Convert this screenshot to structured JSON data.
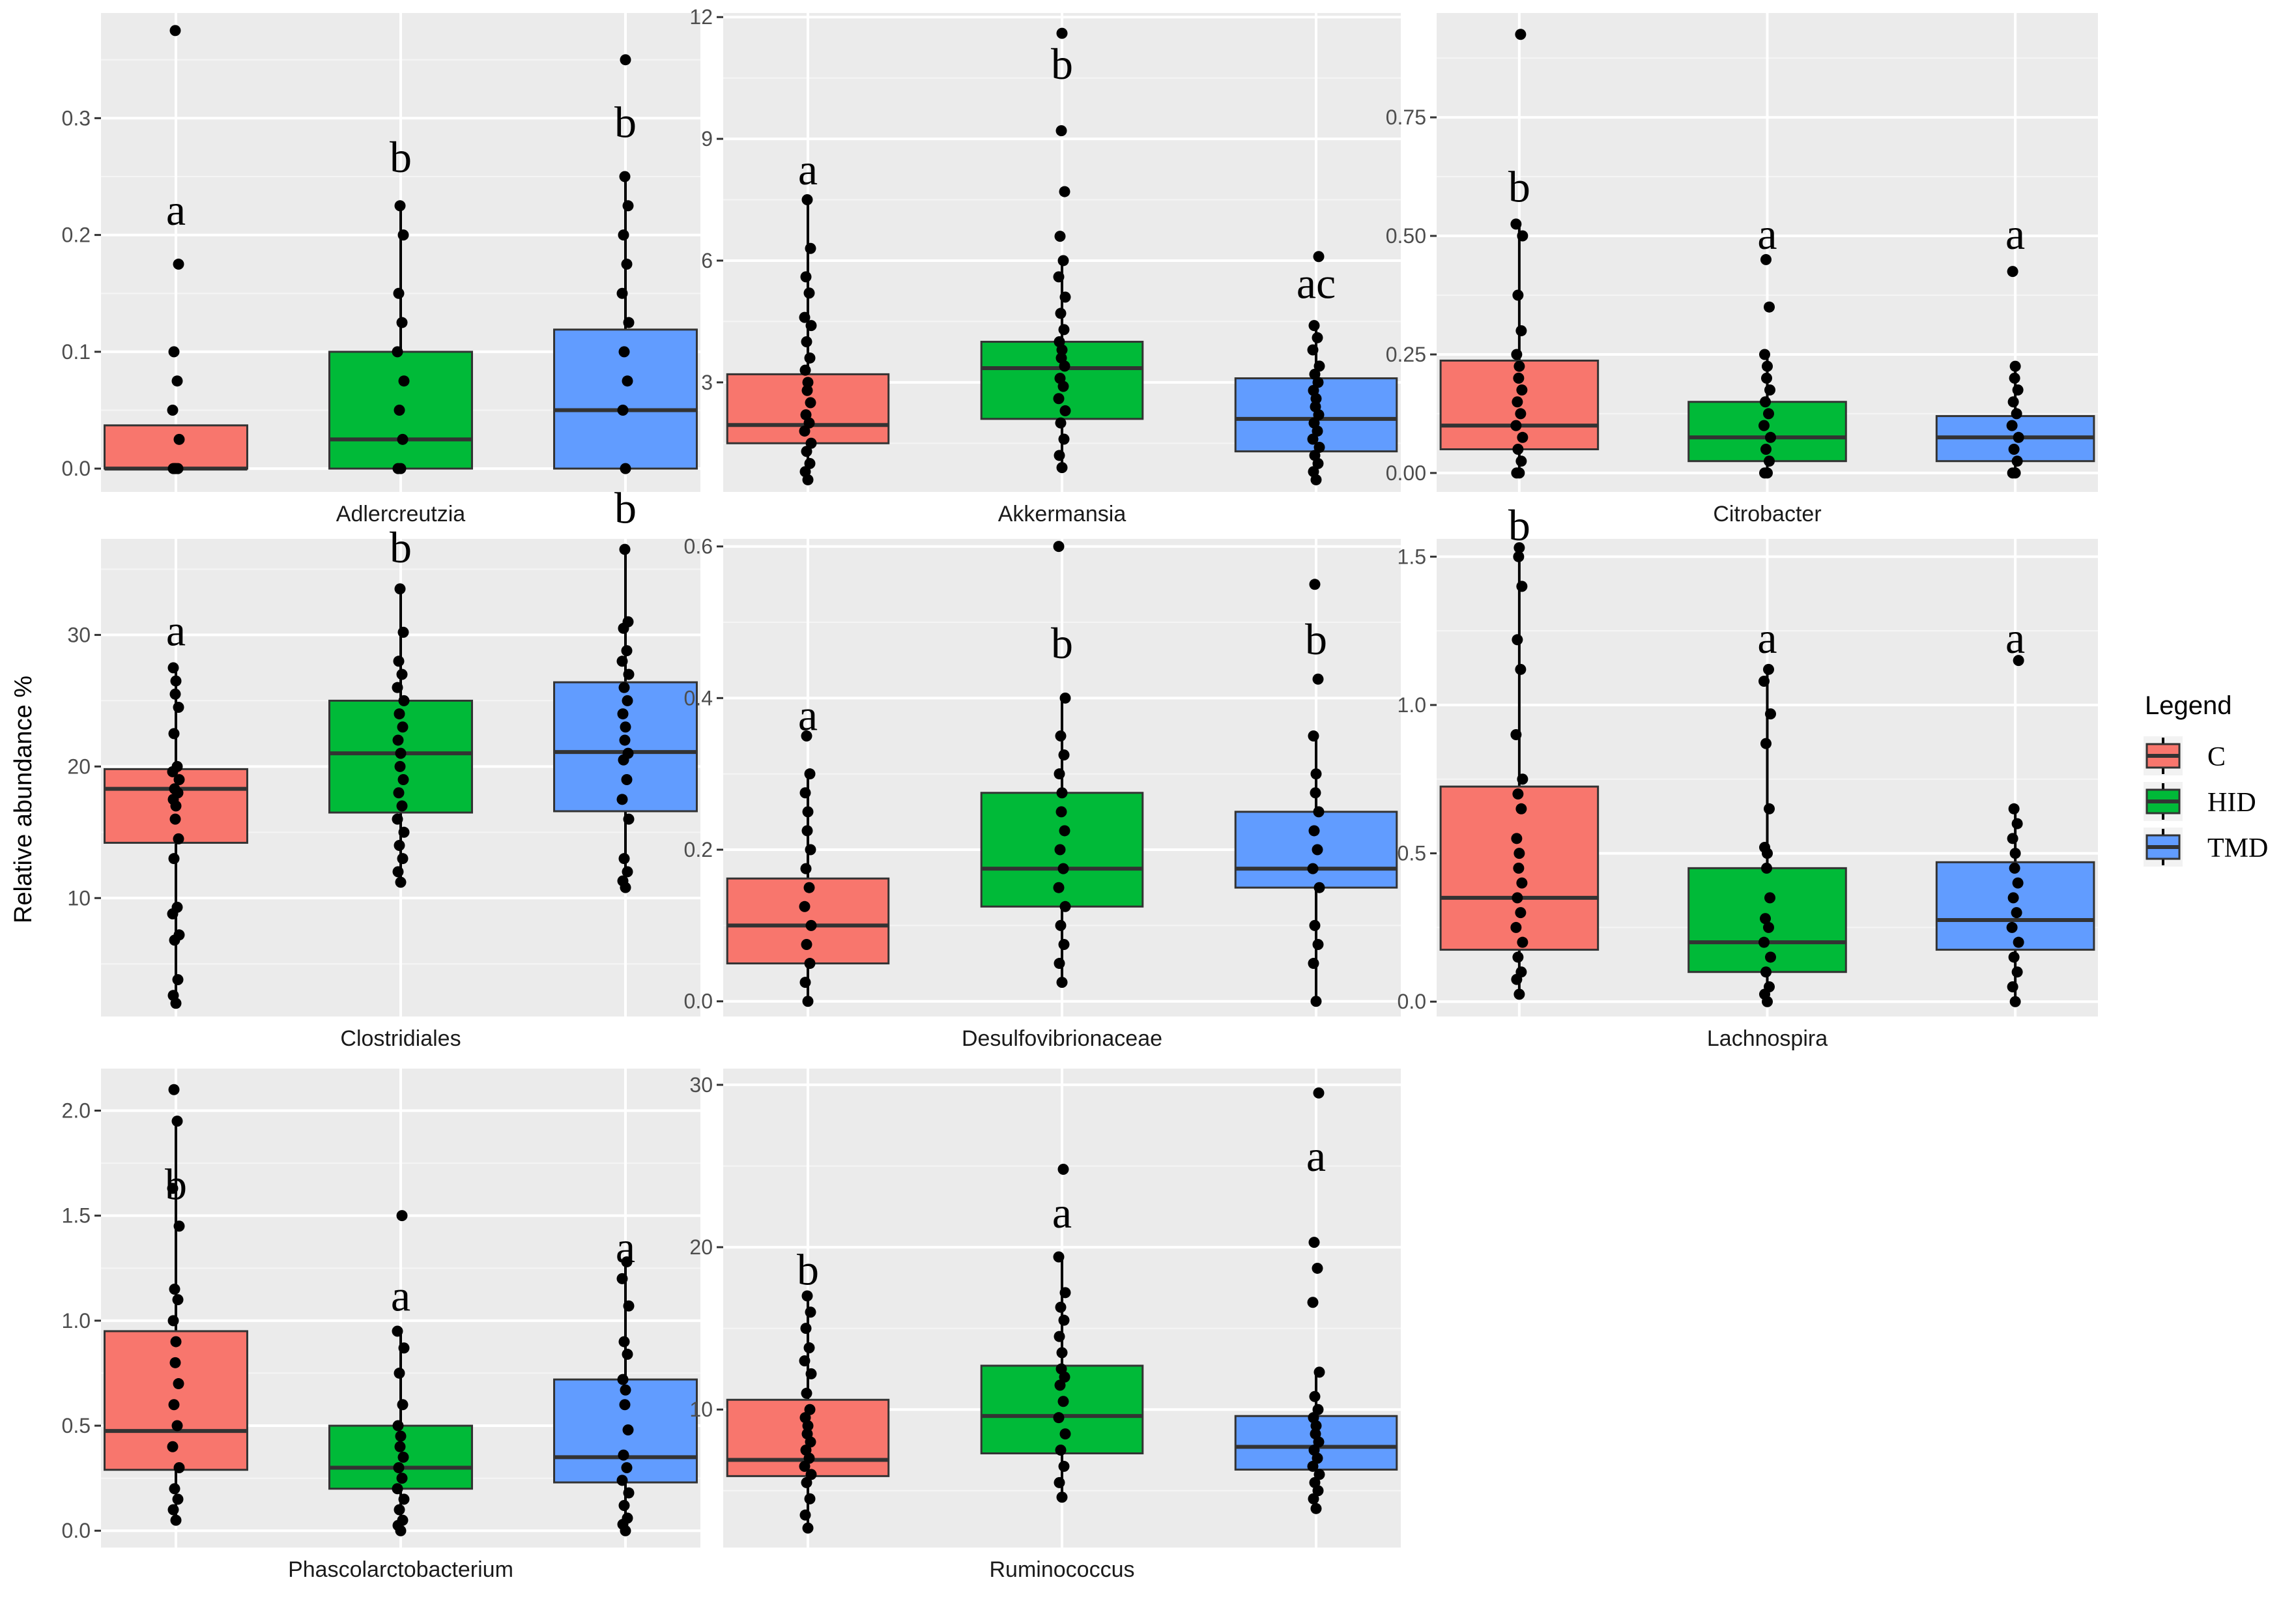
{
  "chart_data": {
    "type": "box",
    "y_axis_label": "Relative abundance %",
    "legend": {
      "title": "Legend",
      "position": "right",
      "items": [
        {
          "label": "C",
          "color": "#F8766D"
        },
        {
          "label": "HID",
          "color": "#00BA38"
        },
        {
          "label": "TMD",
          "color": "#619CFF"
        }
      ]
    },
    "groups": [
      "C",
      "HID",
      "TMD"
    ],
    "panels": [
      {
        "title": "Adlercreutzia",
        "ylim": [
          -0.02,
          0.39
        ],
        "ticks": [
          {
            "v": 0,
            "t": "0.0"
          },
          {
            "v": 0.1,
            "t": "0.1"
          },
          {
            "v": 0.2,
            "t": "0.2"
          },
          {
            "v": 0.3,
            "t": "0.3"
          }
        ],
        "boxes": [
          {
            "group": "C",
            "q1": 0,
            "median": 0,
            "q3": 0.037,
            "whisker_low": 0,
            "whisker_high": 0.037,
            "letter": "a",
            "letter_y": 0.22,
            "points": [
              0,
              0,
              0,
              0,
              0.025,
              0.05,
              0.075,
              0.1,
              0.175,
              0.375
            ]
          },
          {
            "group": "HID",
            "q1": 0,
            "median": 0.025,
            "q3": 0.1,
            "whisker_low": 0,
            "whisker_high": 0.225,
            "letter": "b",
            "letter_y": 0.265,
            "points": [
              0,
              0,
              0.025,
              0.05,
              0.075,
              0.1,
              0.125,
              0.15,
              0.2,
              0.225
            ]
          },
          {
            "group": "TMD",
            "q1": 0,
            "median": 0.05,
            "q3": 0.119,
            "whisker_low": 0,
            "whisker_high": 0.25,
            "letter": "b",
            "letter_y": 0.295,
            "points": [
              0,
              0.05,
              0.075,
              0.1,
              0.125,
              0.15,
              0.175,
              0.2,
              0.225,
              0.25,
              0.35
            ]
          }
        ]
      },
      {
        "title": "Akkermansia",
        "ylim": [
          0.3,
          12.1
        ],
        "ticks": [
          {
            "v": 3,
            "t": "3"
          },
          {
            "v": 6,
            "t": "6"
          },
          {
            "v": 9,
            "t": "9"
          },
          {
            "v": 12,
            "t": "12"
          }
        ],
        "boxes": [
          {
            "group": "C",
            "q1": 1.5,
            "median": 1.95,
            "q3": 3.2,
            "whisker_low": 0.6,
            "whisker_high": 7.5,
            "letter": "a",
            "letter_y": 8.2,
            "points": [
              0.6,
              0.8,
              1,
              1.3,
              1.5,
              1.8,
              2,
              2.2,
              2.5,
              2.8,
              3,
              3.3,
              3.6,
              4,
              4.4,
              4.6,
              5.2,
              5.6,
              6.3,
              7.5
            ]
          },
          {
            "group": "HID",
            "q1": 2.1,
            "median": 3.35,
            "q3": 4,
            "whisker_low": 0.9,
            "whisker_high": 6,
            "letter": "b",
            "letter_y": 10.8,
            "points": [
              0.9,
              1.2,
              1.6,
              2,
              2.3,
              2.6,
              2.9,
              3.1,
              3.4,
              3.6,
              3.8,
              4,
              4.3,
              4.7,
              5.1,
              5.6,
              6,
              6.6,
              7.7,
              9.2,
              11.6
            ]
          },
          {
            "group": "TMD",
            "q1": 1.3,
            "median": 2.1,
            "q3": 3.1,
            "whisker_low": 0.6,
            "whisker_high": 4.4,
            "letter": "ac",
            "letter_y": 5.4,
            "points": [
              0.6,
              0.8,
              1,
              1.2,
              1.4,
              1.6,
              1.8,
              2,
              2.2,
              2.4,
              2.6,
              2.8,
              3,
              3.2,
              3.4,
              3.8,
              4.1,
              4.4,
              6.1
            ]
          }
        ]
      },
      {
        "title": "Citrobacter",
        "ylim": [
          -0.04,
          0.97
        ],
        "ticks": [
          {
            "v": 0,
            "t": "0.00"
          },
          {
            "v": 0.25,
            "t": "0.25"
          },
          {
            "v": 0.5,
            "t": "0.50"
          },
          {
            "v": 0.75,
            "t": "0.75"
          }
        ],
        "boxes": [
          {
            "group": "C",
            "q1": 0.05,
            "median": 0.1,
            "q3": 0.237,
            "whisker_low": 0,
            "whisker_high": 0.525,
            "letter": "b",
            "letter_y": 0.6,
            "points": [
              0,
              0,
              0.025,
              0.05,
              0.075,
              0.1,
              0.125,
              0.15,
              0.175,
              0.2,
              0.225,
              0.25,
              0.3,
              0.375,
              0.5,
              0.525,
              0.925
            ]
          },
          {
            "group": "HID",
            "q1": 0.025,
            "median": 0.075,
            "q3": 0.15,
            "whisker_low": 0,
            "whisker_high": 0.25,
            "letter": "a",
            "letter_y": 0.5,
            "points": [
              0,
              0,
              0.025,
              0.05,
              0.075,
              0.1,
              0.125,
              0.15,
              0.175,
              0.2,
              0.225,
              0.25,
              0.35,
              0.45
            ]
          },
          {
            "group": "TMD",
            "q1": 0.025,
            "median": 0.075,
            "q3": 0.12,
            "whisker_low": 0,
            "whisker_high": 0.225,
            "letter": "a",
            "letter_y": 0.5,
            "points": [
              0,
              0,
              0.025,
              0.05,
              0.075,
              0.1,
              0.125,
              0.15,
              0.175,
              0.2,
              0.225,
              0.425
            ]
          }
        ]
      },
      {
        "title": "Clostridiales",
        "ylim": [
          1,
          37.3
        ],
        "ticks": [
          {
            "v": 10,
            "t": "10"
          },
          {
            "v": 20,
            "t": "20"
          },
          {
            "v": 30,
            "t": "30"
          }
        ],
        "boxes": [
          {
            "group": "C",
            "q1": 14.2,
            "median": 18.3,
            "q3": 19.8,
            "whisker_low": 2,
            "whisker_high": 27.5,
            "letter": "a",
            "letter_y": 30.2,
            "points": [
              2,
              2.6,
              3.8,
              6.8,
              7.2,
              8.8,
              9.3,
              13,
              14.5,
              16,
              17,
              17.5,
              18,
              18.3,
              19,
              19.6,
              20,
              22.5,
              24.5,
              25.5,
              26.5,
              27.5
            ]
          },
          {
            "group": "HID",
            "q1": 16.5,
            "median": 21,
            "q3": 25,
            "whisker_low": 11.2,
            "whisker_high": 33.5,
            "letter": "b",
            "letter_y": 36.5,
            "points": [
              11.2,
              12,
              13,
              14,
              15,
              16,
              17,
              18,
              19,
              20,
              21,
              22,
              23,
              24,
              25,
              26,
              27,
              28,
              30.2,
              33.5
            ]
          },
          {
            "group": "TMD",
            "q1": 16.6,
            "median": 21.1,
            "q3": 26.4,
            "whisker_low": 10.8,
            "whisker_high": 36.5,
            "letter": "b",
            "letter_y": 39.5,
            "points": [
              10.8,
              11.3,
              12,
              13,
              16,
              17.5,
              19,
              20.5,
              21,
              22,
              23,
              24,
              25,
              26,
              27,
              28,
              28.8,
              30.5,
              31,
              36.5
            ]
          }
        ]
      },
      {
        "title": "Desulfovibrionaceae",
        "ylim": [
          -0.02,
          0.61
        ],
        "ticks": [
          {
            "v": 0,
            "t": "0.0"
          },
          {
            "v": 0.2,
            "t": "0.2"
          },
          {
            "v": 0.4,
            "t": "0.4"
          },
          {
            "v": 0.6,
            "t": "0.6"
          }
        ],
        "boxes": [
          {
            "group": "C",
            "q1": 0.05,
            "median": 0.1,
            "q3": 0.162,
            "whisker_low": 0,
            "whisker_high": 0.3,
            "letter": "a",
            "letter_y": 0.375,
            "points": [
              0,
              0.025,
              0.05,
              0.075,
              0.1,
              0.125,
              0.15,
              0.175,
              0.2,
              0.225,
              0.25,
              0.275,
              0.3,
              0.35
            ]
          },
          {
            "group": "HID",
            "q1": 0.125,
            "median": 0.175,
            "q3": 0.275,
            "whisker_low": 0.025,
            "whisker_high": 0.4,
            "letter": "b",
            "letter_y": 0.47,
            "points": [
              0.025,
              0.05,
              0.075,
              0.1,
              0.125,
              0.15,
              0.175,
              0.2,
              0.225,
              0.25,
              0.275,
              0.3,
              0.325,
              0.35,
              0.4,
              0.6
            ]
          },
          {
            "group": "TMD",
            "q1": 0.15,
            "median": 0.175,
            "q3": 0.25,
            "whisker_low": 0,
            "whisker_high": 0.35,
            "letter": "b",
            "letter_y": 0.475,
            "points": [
              0,
              0.05,
              0.075,
              0.1,
              0.15,
              0.175,
              0.2,
              0.225,
              0.25,
              0.275,
              0.3,
              0.35,
              0.425,
              0.55
            ]
          }
        ]
      },
      {
        "title": "Lachnospira",
        "ylim": [
          -0.05,
          1.56
        ],
        "ticks": [
          {
            "v": 0,
            "t": "0.0"
          },
          {
            "v": 0.5,
            "t": "0.5"
          },
          {
            "v": 1,
            "t": "1.0"
          },
          {
            "v": 1.5,
            "t": "1.5"
          }
        ],
        "boxes": [
          {
            "group": "C",
            "q1": 0.175,
            "median": 0.35,
            "q3": 0.725,
            "whisker_low": 0.025,
            "whisker_high": 1.53,
            "letter": "b",
            "letter_y": 1.6,
            "points": [
              0.025,
              0.075,
              0.1,
              0.15,
              0.2,
              0.25,
              0.3,
              0.35,
              0.4,
              0.45,
              0.5,
              0.55,
              0.65,
              0.7,
              0.75,
              0.9,
              1.12,
              1.22,
              1.4,
              1.5,
              1.53
            ]
          },
          {
            "group": "HID",
            "q1": 0.1,
            "median": 0.2,
            "q3": 0.45,
            "whisker_low": 0,
            "whisker_high": 1.12,
            "letter": "a",
            "letter_y": 1.22,
            "points": [
              0,
              0.025,
              0.05,
              0.1,
              0.15,
              0.2,
              0.25,
              0.28,
              0.35,
              0.45,
              0.5,
              0.52,
              0.65,
              0.87,
              0.97,
              1.08,
              1.12
            ]
          },
          {
            "group": "TMD",
            "q1": 0.175,
            "median": 0.275,
            "q3": 0.47,
            "whisker_low": 0,
            "whisker_high": 0.65,
            "letter": "a",
            "letter_y": 1.22,
            "points": [
              0,
              0.05,
              0.1,
              0.15,
              0.2,
              0.25,
              0.3,
              0.35,
              0.4,
              0.45,
              0.5,
              0.55,
              0.6,
              0.65,
              1.15
            ]
          }
        ]
      },
      {
        "title": "Phascolarctobacterium",
        "ylim": [
          -0.08,
          2.2
        ],
        "ticks": [
          {
            "v": 0,
            "t": "0.0"
          },
          {
            "v": 0.5,
            "t": "0.5"
          },
          {
            "v": 1,
            "t": "1.0"
          },
          {
            "v": 1.5,
            "t": "1.5"
          },
          {
            "v": 2,
            "t": "2.0"
          }
        ],
        "boxes": [
          {
            "group": "C",
            "q1": 0.29,
            "median": 0.475,
            "q3": 0.95,
            "whisker_low": 0.05,
            "whisker_high": 1.95,
            "letter": "b",
            "letter_y": 1.64,
            "points": [
              0.05,
              0.1,
              0.15,
              0.2,
              0.3,
              0.4,
              0.5,
              0.6,
              0.7,
              0.8,
              0.9,
              1,
              1.1,
              1.15,
              1.45,
              1.63,
              1.95,
              2.1
            ]
          },
          {
            "group": "HID",
            "q1": 0.2,
            "median": 0.3,
            "q3": 0.5,
            "whisker_low": 0,
            "whisker_high": 0.95,
            "letter": "a",
            "letter_y": 1.11,
            "points": [
              0,
              0.025,
              0.05,
              0.1,
              0.15,
              0.2,
              0.25,
              0.3,
              0.35,
              0.4,
              0.45,
              0.5,
              0.6,
              0.75,
              0.87,
              0.95,
              1.5
            ]
          },
          {
            "group": "TMD",
            "q1": 0.23,
            "median": 0.35,
            "q3": 0.72,
            "whisker_low": 0,
            "whisker_high": 1.28,
            "letter": "a",
            "letter_y": 1.34,
            "points": [
              0,
              0.03,
              0.06,
              0.12,
              0.18,
              0.24,
              0.3,
              0.36,
              0.48,
              0.6,
              0.67,
              0.72,
              0.84,
              0.9,
              1.07,
              1.2,
              1.28
            ]
          }
        ]
      },
      {
        "title": "Ruminococcus",
        "ylim": [
          1.5,
          31
        ],
        "ticks": [
          {
            "v": 10,
            "t": "10"
          },
          {
            "v": 20,
            "t": "20"
          },
          {
            "v": 30,
            "t": "30"
          }
        ],
        "boxes": [
          {
            "group": "C",
            "q1": 5.9,
            "median": 6.9,
            "q3": 10.6,
            "whisker_low": 2.7,
            "whisker_high": 17,
            "letter": "b",
            "letter_y": 18.5,
            "points": [
              2.7,
              3.5,
              4.5,
              5.5,
              6,
              6.5,
              7,
              7.5,
              8,
              8.5,
              9,
              9.5,
              10,
              11,
              12.2,
              13,
              13.8,
              15,
              16,
              17
            ]
          },
          {
            "group": "HID",
            "q1": 7.3,
            "median": 9.6,
            "q3": 12.7,
            "whisker_low": 4.6,
            "whisker_high": 19.4,
            "letter": "a",
            "letter_y": 22,
            "points": [
              4.6,
              5.5,
              6.5,
              7.5,
              8.5,
              9.5,
              10.5,
              11.5,
              12,
              12.5,
              13.5,
              14.5,
              15.5,
              16.3,
              17.2,
              19.4,
              24.8
            ]
          },
          {
            "group": "TMD",
            "q1": 6.3,
            "median": 7.7,
            "q3": 9.6,
            "whisker_low": 3.9,
            "whisker_high": 12.3,
            "letter": "a",
            "letter_y": 25.5,
            "points": [
              3.9,
              4.5,
              5,
              5.5,
              6,
              6.5,
              7,
              7.5,
              8,
              8.5,
              9,
              9.5,
              10,
              10.8,
              12.3,
              16.6,
              18.7,
              20.3,
              29.5
            ]
          }
        ]
      }
    ]
  }
}
